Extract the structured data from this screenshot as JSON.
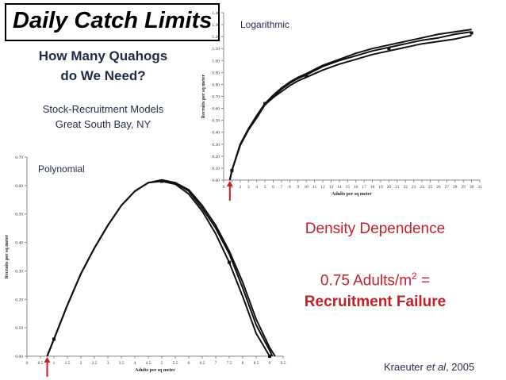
{
  "slide": {
    "title": "Daily Catch Limits",
    "subtitle_line1": "How Many Quahogs",
    "subtitle_line2": "do We Need?",
    "models_line1": "Stock-Recruitment Models",
    "models_line2": "Great South Bay, NY",
    "logarithmic_label": "Logarithmic",
    "polynomial_label": "Polynomial",
    "density_label": "Density Dependence",
    "ratio_prefix": "0.75 Adults/m",
    "ratio_sup": "2",
    "ratio_suffix": " =",
    "failure_label": "Recruitment Failure",
    "citation_author": "Kraeuter ",
    "citation_etal": "et al",
    "citation_year": ", 2005",
    "accent_color": "#c0202a"
  },
  "chart_data": [
    {
      "type": "line",
      "xlabel": "Adults per sq meter",
      "ylabel": "Recruits per sq meter",
      "xlim": [
        0,
        31
      ],
      "ylim": [
        0,
        1.4
      ],
      "x_ticks": [
        0,
        1,
        2,
        3,
        4,
        5,
        6,
        7,
        8,
        9,
        10,
        11,
        12,
        13,
        14,
        15,
        16,
        17,
        18,
        19,
        20,
        21,
        22,
        23,
        24,
        25,
        26,
        27,
        28,
        29,
        30,
        31
      ],
      "y_ticks": [
        "0.00",
        "0.10",
        "0.20",
        "0.30",
        "0.40",
        "0.50",
        "0.60",
        "0.70",
        "0.80",
        "0.90",
        "1.00",
        "1.10",
        "1.20",
        "1.30",
        "1.40"
      ],
      "series": [
        {
          "x": [
            0.75,
            1,
            2,
            3,
            4,
            5,
            6,
            7,
            8,
            9,
            10,
            12,
            14,
            16,
            18,
            20,
            22,
            24,
            26,
            28,
            30
          ],
          "values": [
            0.0,
            0.08,
            0.29,
            0.42,
            0.53,
            0.63,
            0.7,
            0.76,
            0.81,
            0.85,
            0.88,
            0.95,
            1.0,
            1.04,
            1.08,
            1.11,
            1.14,
            1.17,
            1.19,
            1.22,
            1.24
          ]
        },
        {
          "x": [
            0.75,
            1,
            2,
            3,
            4,
            5,
            6,
            7,
            8,
            9,
            10,
            12,
            14,
            16,
            18,
            20,
            22,
            24,
            26,
            28,
            30
          ],
          "values": [
            0.0,
            0.08,
            0.3,
            0.43,
            0.54,
            0.64,
            0.71,
            0.77,
            0.82,
            0.86,
            0.89,
            0.96,
            1.01,
            1.06,
            1.1,
            1.13,
            1.16,
            1.19,
            1.22,
            1.24,
            1.26
          ]
        },
        {
          "x": [
            0.75,
            1,
            2,
            3,
            4,
            5,
            6,
            7,
            8,
            9,
            10,
            12,
            14,
            16,
            18,
            20,
            22,
            24,
            26,
            28,
            30
          ],
          "values": [
            0.0,
            0.08,
            0.29,
            0.42,
            0.52,
            0.63,
            0.69,
            0.74,
            0.79,
            0.83,
            0.86,
            0.92,
            0.97,
            1.01,
            1.05,
            1.08,
            1.11,
            1.14,
            1.16,
            1.18,
            1.21
          ]
        }
      ],
      "markers": [
        {
          "x": 1,
          "y": 0.08
        },
        {
          "x": 5,
          "y": 0.64
        },
        {
          "x": 10,
          "y": 0.87
        },
        {
          "x": 20,
          "y": 1.1
        },
        {
          "x": 30,
          "y": 1.23
        }
      ],
      "arrow_x": 0.75
    },
    {
      "type": "line",
      "xlabel": "Adults per sq meter",
      "ylabel": "Recruits per sq meter",
      "xlim": [
        0,
        9.5
      ],
      "ylim": [
        0,
        0.7
      ],
      "x_ticks": [
        "0",
        "0.5",
        "1",
        "1.5",
        "2",
        "2.5",
        "3",
        "3.5",
        "4",
        "4.5",
        "5",
        "5.5",
        "6",
        "6.5",
        "7",
        "7.5",
        "8",
        "8.5",
        "9",
        "9.5"
      ],
      "y_ticks": [
        "0.00",
        "0.10",
        "0.20",
        "0.30",
        "0.40",
        "0.50",
        "0.60",
        "0.70"
      ],
      "series": [
        {
          "x": [
            0.75,
            1,
            1.5,
            2,
            2.5,
            3,
            3.5,
            4,
            4.5,
            5,
            5.5,
            6,
            6.5,
            7,
            7.5,
            8,
            8.5,
            9
          ],
          "values": [
            0.0,
            0.06,
            0.18,
            0.29,
            0.38,
            0.46,
            0.53,
            0.58,
            0.61,
            0.615,
            0.605,
            0.57,
            0.51,
            0.43,
            0.33,
            0.21,
            0.08,
            0.0
          ]
        },
        {
          "x": [
            0.75,
            1,
            1.5,
            2,
            2.5,
            3,
            3.5,
            4,
            4.5,
            5,
            5.5,
            6,
            6.5,
            7,
            7.5,
            8,
            8.5,
            9,
            9.1
          ],
          "values": [
            0.0,
            0.06,
            0.18,
            0.29,
            0.38,
            0.46,
            0.53,
            0.58,
            0.61,
            0.618,
            0.61,
            0.58,
            0.52,
            0.45,
            0.36,
            0.24,
            0.11,
            0.02,
            0.0
          ]
        },
        {
          "x": [
            0.75,
            1,
            1.5,
            2,
            2.5,
            3,
            3.5,
            4,
            4.5,
            5,
            5.5,
            6,
            6.5,
            7,
            7.5,
            8,
            8.5,
            9,
            9.2
          ],
          "values": [
            0.0,
            0.06,
            0.18,
            0.29,
            0.38,
            0.46,
            0.53,
            0.58,
            0.61,
            0.62,
            0.61,
            0.585,
            0.53,
            0.46,
            0.37,
            0.26,
            0.13,
            0.03,
            0.0
          ]
        }
      ],
      "markers": [
        {
          "x": 1,
          "y": 0.06
        },
        {
          "x": 5,
          "y": 0.615
        },
        {
          "x": 7.5,
          "y": 0.33
        },
        {
          "x": 9,
          "y": 0.0
        }
      ],
      "arrow_x": 0.75
    }
  ]
}
